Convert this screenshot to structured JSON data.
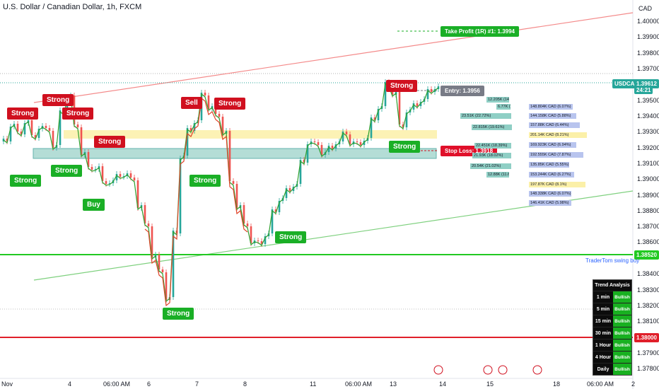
{
  "chart_title": "U.S. Dollar / Canadian Dollar, 1h, FXCM",
  "currency": "CAD",
  "symbol_tag": "USDCAD",
  "current_price": "1.39612",
  "countdown": "24:21",
  "price_ticks": [
    "1.40000",
    "1.39900",
    "1.39800",
    "1.39700",
    "1.39600",
    "1.39500",
    "1.39400",
    "1.39300",
    "1.39200",
    "1.39100",
    "1.39000",
    "1.38900",
    "1.38800",
    "1.38700",
    "1.38600",
    "1.38520",
    "1.38400",
    "1.38300",
    "1.38200",
    "1.38100",
    "1.38000",
    "1.37900",
    "1.37800"
  ],
  "time_ticks": [
    "Nov",
    "4",
    "06:00 AM",
    "6",
    "7",
    "8",
    "11",
    "06:00 AM",
    "13",
    "14",
    "15",
    "18",
    "06:00 AM",
    "2"
  ],
  "labels": {
    "take_profit": "Take Profit (1R) #1: 1.3994",
    "entry": "Entry: 1.3956",
    "stop_loss": "Stop Loss: 1.3918",
    "swing_buy": "TraderTom swing buy",
    "green_level": "1.38520",
    "red_level": "1.38000"
  },
  "signals": [
    {
      "text": "Strong",
      "color": "red"
    },
    {
      "text": "Strong",
      "color": "red"
    },
    {
      "text": "Strong",
      "color": "red"
    },
    {
      "text": "Strong",
      "color": "red"
    },
    {
      "text": "Sell",
      "color": "red"
    },
    {
      "text": "Strong",
      "color": "red"
    },
    {
      "text": "Strong",
      "color": "red"
    },
    {
      "text": "Strong",
      "color": "green"
    },
    {
      "text": "Strong",
      "color": "green"
    },
    {
      "text": "Buy",
      "color": "green"
    },
    {
      "text": "Strong",
      "color": "green"
    },
    {
      "text": "Strong",
      "color": "green"
    },
    {
      "text": "Strong",
      "color": "green"
    },
    {
      "text": "Strong",
      "color": "green"
    }
  ],
  "volume_profile": [
    "12.205K (14.5%)",
    "6.77K (11.8%)",
    "23.51K (22.72%)",
    "22.815K (19.61%)",
    "22.451K (18.39%)",
    "21.93K (18.02%)",
    "20.54K (21.02%)",
    "12.88K (11.69%)",
    "148.804K CAD (6.07%)",
    "144.158K CAD (5.88%)",
    "157.88K CAD (6.44%)",
    "201.14K CAD (8.21%)",
    "169.923K CAD (6.94%)",
    "192.555K CAD (7.87%)",
    "135.85K CAD (5.55%)",
    "153.244K CAD (6.27%)",
    "197.87K CAD (8.1%)",
    "148.338K CAD (6.07%)",
    "146.41K CAD (5.98%)"
  ],
  "trend_analysis": {
    "title": "Trend Analysis",
    "rows": [
      {
        "tf": "1 min",
        "val": "Bullish"
      },
      {
        "tf": "5 min",
        "val": "Bullish"
      },
      {
        "tf": "15 min",
        "val": "Bullish"
      },
      {
        "tf": "30 min",
        "val": "Bullish"
      },
      {
        "tf": "1 Hour",
        "val": "Bullish"
      },
      {
        "tf": "4 Hour",
        "val": "Bullish"
      },
      {
        "tf": "Daily",
        "val": "Bullish"
      }
    ]
  },
  "colors": {
    "bull": "#26a69a",
    "bear": "#ef5350",
    "signal_green": "#1aaf26",
    "signal_red": "#d0101f"
  }
}
